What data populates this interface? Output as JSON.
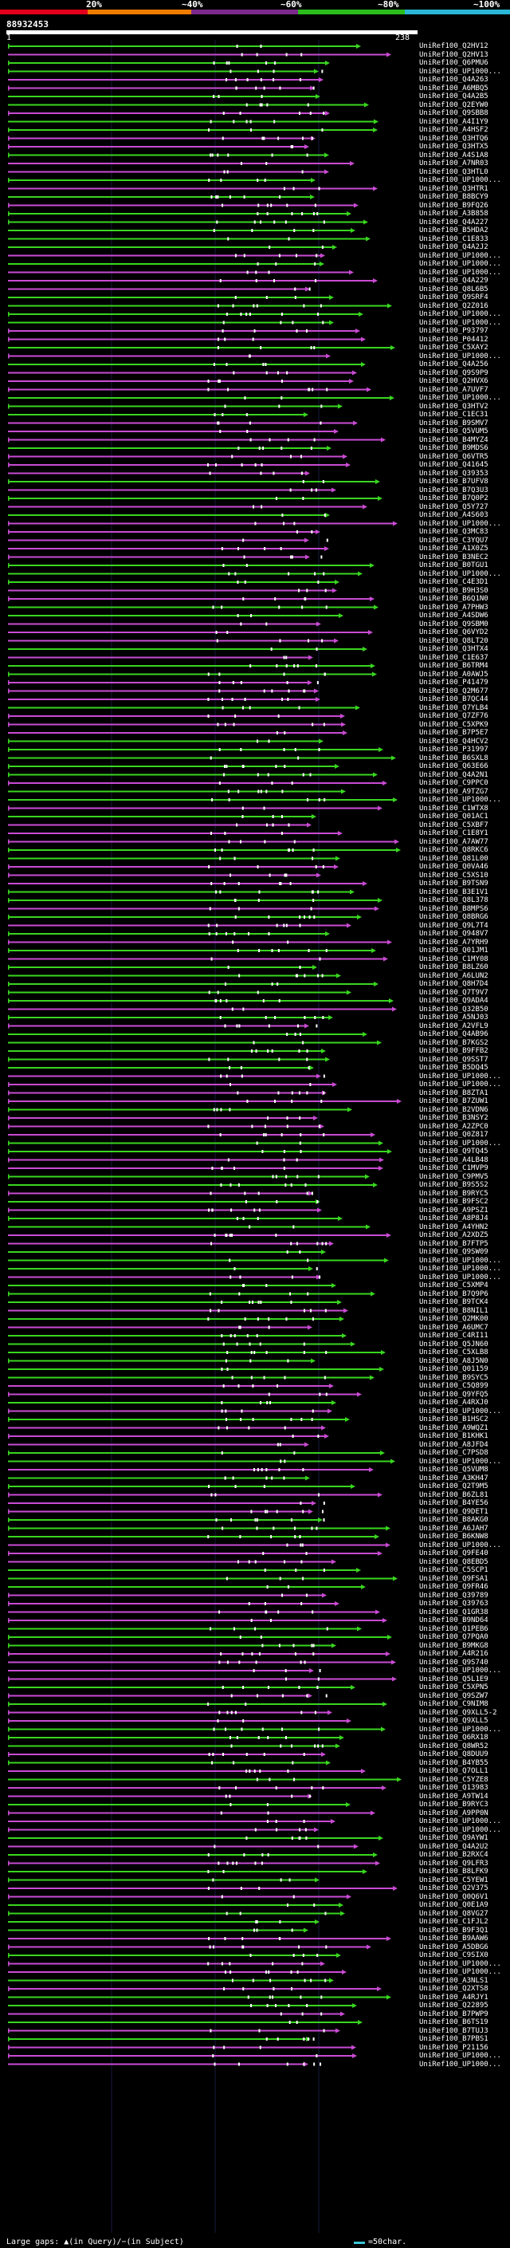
{
  "header": {
    "percent_labels": [
      "20%",
      "~40%",
      "~60%",
      "~80%",
      "~100%"
    ],
    "colors": [
      "#e3001b",
      "#f07d00",
      "#7b2a8c",
      "#2bbd1b",
      "#2ab6d6"
    ]
  },
  "query": {
    "id": "88932453",
    "start_label": "1",
    "end_label": "238"
  },
  "hits": [
    "UniRef100_Q2HV12",
    "UniRef100_Q2HV13",
    "UniRef100_Q6PMU6",
    "UniRef100_UP1000...",
    "UniRef100_Q4A263",
    "UniRef100_A6MBQ5",
    "UniRef100_Q4A2B5",
    "UniRef100_Q2EYW0",
    "UniRef100_Q9SBB8",
    "UniRef100_A4I1Y9",
    "UniRef100_A4HSF2",
    "UniRef100_Q3HTQ6",
    "UniRef100_Q3HTX5",
    "UniRef100_A4S1A8",
    "UniRef100_A7NR03",
    "UniRef100_Q3HTL0",
    "UniRef100_UP1000...",
    "UniRef100_Q3HTR1",
    "UniRef100_B8BCY9",
    "UniRef100_B9FQ26",
    "UniRef100_A3B858",
    "UniRef100_Q4A227",
    "UniRef100_B5HDA2",
    "UniRef100_C1E833",
    "UniRef100_Q4A2J2",
    "UniRef100_UP1000...",
    "UniRef100_UP1000...",
    "UniRef100_UP1000...",
    "UniRef100_Q4A229",
    "UniRef100_Q8L6B5",
    "UniRef100_Q9SRF4",
    "UniRef100_Q2Z016",
    "UniRef100_UP1000...",
    "UniRef100_UP1000...",
    "UniRef100_P93797",
    "UniRef100_P04412",
    "UniRef100_C5XAY2",
    "UniRef100_UP1000...",
    "UniRef100_Q4A256",
    "UniRef100_Q9S9P9",
    "UniRef100_Q2HVX6",
    "UniRef100_A7UVF7",
    "UniRef100_UP1000...",
    "UniRef100_Q3HTV2",
    "UniRef100_C1EC31",
    "UniRef100_B9SMV7",
    "UniRef100_Q5VUM5",
    "UniRef100_B4MYZ4",
    "UniRef100_B9MDS6",
    "UniRef100_Q6VTR5",
    "UniRef100_Q41645",
    "UniRef100_Q39353",
    "UniRef100_B7UFV8",
    "UniRef100_B7Q3U3",
    "UniRef100_B7Q0P2",
    "UniRef100_Q5Y727",
    "UniRef100_A4S603",
    "UniRef100_UP1000...",
    "UniRef100_Q3MC83",
    "UniRef100_C3YQU7",
    "UniRef100_A1X0Z5",
    "UniRef100_B3NEC2",
    "UniRef100_B0TGU1",
    "UniRef100_UP1000...",
    "UniRef100_C4E3D1",
    "UniRef100_B9H3S0",
    "UniRef100_B6Q1N0",
    "UniRef100_A7PHW3",
    "UniRef100_A4SDW6",
    "UniRef100_Q9SBM0",
    "UniRef100_Q6VYD2",
    "UniRef100_Q8LT20",
    "UniRef100_Q3HTX4",
    "UniRef100_C1E637",
    "UniRef100_B6TRM4",
    "UniRef100_A0AWJ5",
    "UniRef100_P41479",
    "UniRef100_Q2M677",
    "UniRef100_B7QC44",
    "UniRef100_Q7YLB4",
    "UniRef100_Q7ZF76",
    "UniRef100_C5XPK9",
    "UniRef100_B7P5E7",
    "UniRef100_Q4HCV2",
    "UniRef100_P31997",
    "UniRef100_B6SXL8",
    "UniRef100_Q63E66",
    "UniRef100_Q4A2N1",
    "UniRef100_C9PPC0",
    "UniRef100_A9TZG7",
    "UniRef100_UP1000...",
    "UniRef100_C1WTX8",
    "UniRef100_Q01AC1",
    "UniRef100_C5XBF7",
    "UniRef100_C1E8Y1",
    "UniRef100_A7AW77",
    "UniRef100_Q8RKC6",
    "UniRef100_Q81L00",
    "UniRef100_Q0VA46",
    "UniRef100_C5XS10",
    "UniRef100_B9TSN9",
    "UniRef100_B3E1V1",
    "UniRef100_Q8L378",
    "UniRef100_B8MPS6",
    "UniRef100_Q8BRG6",
    "UniRef100_Q9L7T4",
    "UniRef100_Q948V7",
    "UniRef100_A7YRH9",
    "UniRef100_Q01JM1",
    "UniRef100_C1MY08",
    "UniRef100_B8LZ60",
    "UniRef100_A6LUN2",
    "UniRef100_Q8H7D4",
    "UniRef100_Q7T9V7",
    "UniRef100_Q9ADA4",
    "UniRef100_Q32B50",
    "UniRef100_A5NJ03",
    "UniRef100_A2VFL9",
    "UniRef100_Q4AB96",
    "UniRef100_B7KGS2",
    "UniRef100_B9FFB2",
    "UniRef100_Q9SST7",
    "UniRef100_B5DQ45",
    "UniRef100_UP1000...",
    "UniRef100_UP1000...",
    "UniRef100_B8ZTA1",
    "UniRef100_B7ZUW1",
    "UniRef100_B2VDN6",
    "UniRef100_B3NSY2",
    "UniRef100_A2ZPC0",
    "UniRef100_Q0Z817",
    "UniRef100_UP1000...",
    "UniRef100_Q9TQ45",
    "UniRef100_A4LB48",
    "UniRef100_C1MVP9",
    "UniRef100_C9PMV5",
    "UniRef100_B9S5S2",
    "UniRef100_B9RYC5",
    "UniRef100_B9FSC2",
    "UniRef100_A9PSZ1",
    "UniRef100_A8P8J4",
    "UniRef100_A4YHN2",
    "UniRef100_A2XDZ5",
    "UniRef100_B7FTP5",
    "UniRef100_Q9SW09",
    "UniRef100_UP1000...",
    "UniRef100_UP1000...",
    "UniRef100_UP1000...",
    "UniRef100_C5XMP4",
    "UniRef100_B7Q9P6",
    "UniRef100_B9TCK4",
    "UniRef100_B8NIL1",
    "UniRef100_Q2MK00",
    "UniRef100_A6UMC7",
    "UniRef100_C4RI11",
    "UniRef100_Q5JN60",
    "UniRef100_C5XLB8",
    "UniRef100_A8J5N0",
    "UniRef100_Q01159",
    "UniRef100_B9SYC5",
    "UniRef100_C5Q899",
    "UniRef100_Q9YFQ5",
    "UniRef100_A4RXJ0",
    "UniRef100_UP1000...",
    "UniRef100_B1HSC2",
    "UniRef100_A9WQZ1",
    "UniRef100_B1KHK1",
    "UniRef100_A8JFD4",
    "UniRef100_C7PSD8",
    "UniRef100_UP1000...",
    "UniRef100_Q5VUM8",
    "UniRef100_A3KH47",
    "UniRef100_Q2T9M5",
    "UniRef100_B6ZL81",
    "UniRef100_B4YE56",
    "UniRef100_Q9DET1",
    "UniRef100_B8AKG0",
    "UniRef100_A6JAH7",
    "UniRef100_B6KNW8",
    "UniRef100_UP1000...",
    "UniRef100_Q9FE40",
    "UniRef100_Q8EBD5",
    "UniRef100_C5SCP1",
    "UniRef100_Q9FSA1",
    "UniRef100_Q9FR46",
    "UniRef100_Q39789",
    "UniRef100_Q39763",
    "UniRef100_Q1GR38",
    "UniRef100_B9ND64",
    "UniRef100_Q1PEB6",
    "UniRef100_Q7PQA0",
    "UniRef100_B9MKG8",
    "UniRef100_A4R216",
    "UniRef100_Q9S740",
    "UniRef100_UP1000...",
    "UniRef100_Q5L1E9",
    "UniRef100_C5XPN5",
    "UniRef100_Q9SZW7",
    "UniRef100_C9NIM8",
    "UniRef100_Q9XLL5-2",
    "UniRef100_Q9XLL5",
    "UniRef100_UP1000...",
    "UniRef100_Q6RX18",
    "UniRef100_Q8WR52",
    "UniRef100_Q8DUU9",
    "UniRef100_B4YB55",
    "UniRef100_Q7OLL1",
    "UniRef100_C5YZE8",
    "UniRef100_Q13983",
    "UniRef100_A9TW14",
    "UniRef100_B9RYC3",
    "UniRef100_A9PP0N",
    "UniRef100_UP1000...",
    "UniRef100_UP1000...",
    "UniRef100_Q9AYW1",
    "UniRef100_Q4A2U2",
    "UniRef100_B2RXC4",
    "UniRef100_Q9LFR3",
    "UniRef100_B8LFK9",
    "UniRef100_C5YEW1",
    "UniRef100_Q2V375",
    "UniRef100_Q0Q6V1",
    "UniRef100_Q0E1A9",
    "UniRef100_Q8VG27",
    "UniRef100_C1FJL2",
    "UniRef100_B9F3Q1",
    "UniRef100_B9AAW6",
    "UniRef100_A5DBG6",
    "UniRef100_C9SIX0",
    "UniRef100_UP1000...",
    "UniRef100_UP1000...",
    "UniRef100_A3NLS1",
    "UniRef100_Q2XTS8",
    "UniRef100_A4RJY1",
    "UniRef100_Q22895",
    "UniRef100_B7PWP9",
    "UniRef100_B6TS19",
    "UniRef100_B7TUJ3",
    "UniRef100_B7PBS1",
    "UniRef100_P21156",
    "UniRef100_UP1000...",
    "UniRef100_UP1000..."
  ],
  "footer": {
    "gaps_text": "Large gaps: ▲(in Query)/−(in Subject)",
    "scale_text": "=50char."
  }
}
